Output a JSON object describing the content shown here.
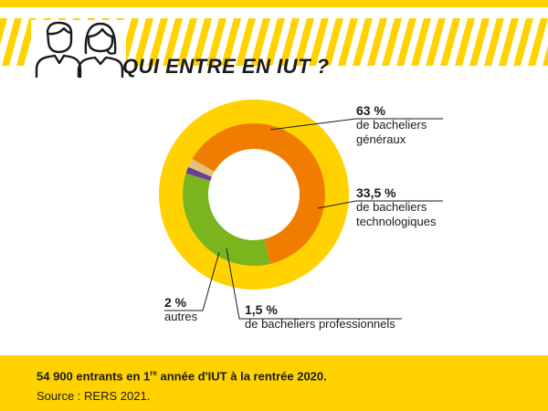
{
  "header": {
    "title": "QUI ENTRE EN IUT ?"
  },
  "colors": {
    "yellow": "#ffd200",
    "orange": "#f07d00",
    "green": "#7ab51d",
    "purple": "#6b3e98",
    "beige": "#e2c27a",
    "text": "#1a1a1a"
  },
  "chart_data": {
    "type": "pie",
    "style": "donut",
    "total_circle": 100,
    "segments": [
      {
        "name": "bacheliers généraux",
        "value": 63,
        "pct_label": "63 %",
        "line1": "de bacheliers",
        "line2": "généraux",
        "color": "#f07d00"
      },
      {
        "name": "bacheliers technologiques",
        "value": 33.5,
        "pct_label": "33,5 %",
        "line1": "de bacheliers",
        "line2": "technologiques",
        "color": "#7ab51d"
      },
      {
        "name": "bacheliers professionnels",
        "value": 1.5,
        "pct_label": "1,5 %",
        "line1": "de bacheliers professionnels",
        "line2": "",
        "color": "#6b3e98"
      },
      {
        "name": "autres",
        "value": 2,
        "pct_label": "2 %",
        "line1": "autres",
        "line2": "",
        "color": "#e2c27a"
      }
    ]
  },
  "footer": {
    "main_prefix": "54 900 entrants en 1",
    "main_sup": "re",
    "main_suffix": " année d'IUT à la rentrée 2020.",
    "source": "Source : RERS 2021."
  }
}
